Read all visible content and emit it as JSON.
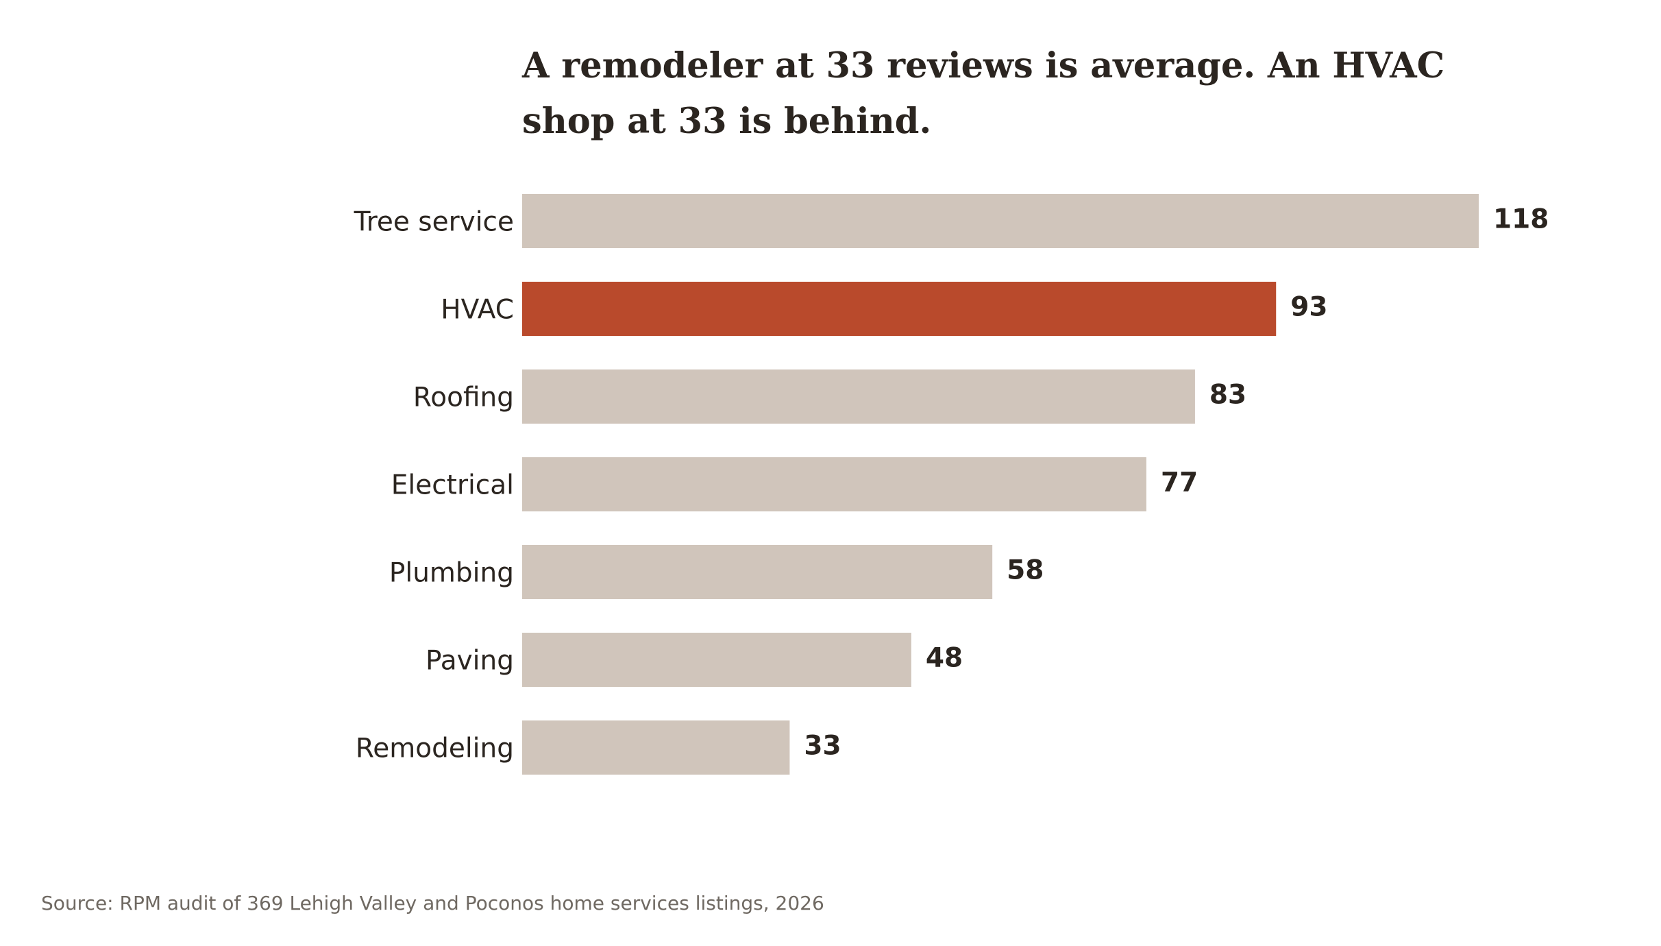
{
  "chart_data": {
    "type": "bar",
    "orientation": "horizontal",
    "title_lines": [
      "A remodeler at 33 reviews is average. An HVAC",
      "shop at 33 is behind."
    ],
    "categories": [
      "Tree service",
      "HVAC",
      "Roofing",
      "Electrical",
      "Plumbing",
      "Paving",
      "Remodeling"
    ],
    "values": [
      118,
      93,
      83,
      77,
      58,
      48,
      33
    ],
    "highlight": "HVAC",
    "xlim": [
      0,
      118
    ],
    "grid": false,
    "legend": "none",
    "colors": {
      "bar": "#d0c5bb",
      "highlight": "#b94a2c",
      "text": "#2b2520",
      "note": "#6f6962"
    },
    "source": "Source: RPM audit of 369 Lehigh Valley and Poconos home services listings, 2026"
  }
}
